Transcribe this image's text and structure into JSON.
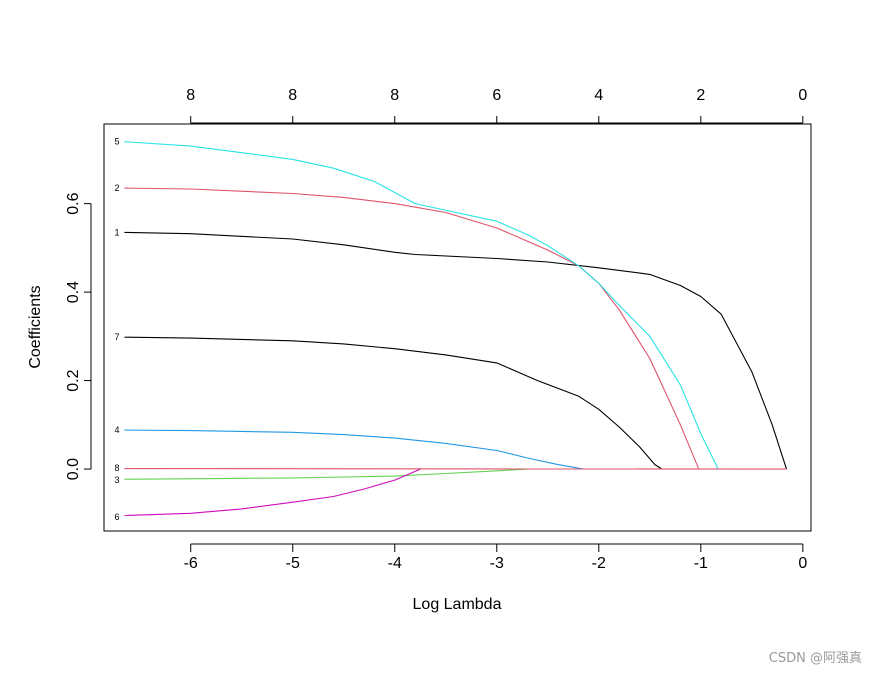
{
  "chart_data": {
    "type": "line",
    "xlabel": "Log Lambda",
    "ylabel": "Coefficients",
    "xlim": [
      -6.85,
      0.08
    ],
    "ylim": [
      -0.14,
      0.78
    ],
    "x_ticks": [
      -6,
      -5,
      -4,
      -3,
      -2,
      -1,
      0
    ],
    "y_ticks": [
      0.0,
      0.2,
      0.4,
      0.6
    ],
    "y_tick_labels": [
      "0.0",
      "0.2",
      "0.4",
      "0.6"
    ],
    "top_axis_ticks": [
      {
        "x": -6,
        "label": "8"
      },
      {
        "x": -5,
        "label": "8"
      },
      {
        "x": -4,
        "label": "8"
      },
      {
        "x": -3,
        "label": "6"
      },
      {
        "x": -2,
        "label": "4"
      },
      {
        "x": -1,
        "label": "2"
      },
      {
        "x": 0,
        "label": "0"
      }
    ],
    "grid": false,
    "series": [
      {
        "name": "1",
        "color": "#000000",
        "x": [
          -6.65,
          -6,
          -5,
          -4.5,
          -4,
          -3.8,
          -3,
          -2.5,
          -2,
          -1.5,
          -1.2,
          -1,
          -0.8,
          -0.5,
          -0.3,
          -0.16
        ],
        "y": [
          0.535,
          0.532,
          0.52,
          0.507,
          0.49,
          0.485,
          0.476,
          0.468,
          0.455,
          0.44,
          0.415,
          0.39,
          0.35,
          0.22,
          0.1,
          0.0
        ]
      },
      {
        "name": "2",
        "color": "#DF536B",
        "x": [
          -6.65,
          -6,
          -5,
          -4.5,
          -4,
          -3.5,
          -3,
          -2.7,
          -2.5,
          -2.2,
          -2,
          -1.8,
          -1.5,
          -1.2,
          -1.02
        ],
        "y": [
          0.635,
          0.633,
          0.623,
          0.614,
          0.6,
          0.58,
          0.545,
          0.515,
          0.495,
          0.46,
          0.42,
          0.36,
          0.25,
          0.1,
          0.0
        ]
      },
      {
        "name": "3",
        "color": "#61D04F",
        "x": [
          -6.65,
          -6,
          -5,
          -4.5,
          -4,
          -3.5,
          -3,
          -2.7
        ],
        "y": [
          -0.023,
          -0.022,
          -0.02,
          -0.018,
          -0.016,
          -0.01,
          -0.004,
          0.0
        ]
      },
      {
        "name": "4",
        "color": "#2297E6",
        "x": [
          -6.65,
          -6,
          -5,
          -4.5,
          -4,
          -3.5,
          -3,
          -2.7,
          -2.4,
          -2.15
        ],
        "y": [
          0.088,
          0.087,
          0.083,
          0.078,
          0.07,
          0.058,
          0.042,
          0.025,
          0.01,
          0.0
        ]
      },
      {
        "name": "5",
        "color": "#28E2E5",
        "x": [
          -6.65,
          -6,
          -5,
          -4.6,
          -4.2,
          -3.8,
          -3,
          -2.7,
          -2.5,
          -2.2,
          -2,
          -1.8,
          -1.5,
          -1.2,
          -1,
          -0.83
        ],
        "y": [
          0.74,
          0.73,
          0.7,
          0.68,
          0.65,
          0.6,
          0.56,
          0.53,
          0.505,
          0.46,
          0.42,
          0.37,
          0.3,
          0.19,
          0.08,
          0.0
        ]
      },
      {
        "name": "6",
        "color": "#CD0BBC",
        "x": [
          -6.65,
          -6,
          -5.5,
          -5,
          -4.6,
          -4.3,
          -4,
          -3.75
        ],
        "y": [
          -0.105,
          -0.1,
          -0.09,
          -0.075,
          -0.062,
          -0.045,
          -0.025,
          0.0
        ]
      },
      {
        "name": "7",
        "color": "#000000",
        "x": [
          -6.65,
          -6,
          -5,
          -4.5,
          -4,
          -3.5,
          -3,
          -2.8,
          -2.6,
          -2.2,
          -2,
          -1.8,
          -1.6,
          -1.45,
          -1.38
        ],
        "y": [
          0.298,
          0.296,
          0.29,
          0.283,
          0.272,
          0.258,
          0.24,
          0.22,
          0.2,
          0.165,
          0.135,
          0.095,
          0.05,
          0.01,
          0.0
        ]
      },
      {
        "name": "8",
        "color": "#DF536B",
        "x": [
          -6.65,
          -0.16
        ],
        "y": [
          0.001,
          0.0
        ]
      }
    ],
    "end_labels": [
      {
        "text": "5",
        "y": 0.74
      },
      {
        "text": "2",
        "y": 0.635
      },
      {
        "text": "1",
        "y": 0.535
      },
      {
        "text": "7",
        "y": 0.298
      },
      {
        "text": "4",
        "y": 0.088
      },
      {
        "text": "8",
        "y": 0.002
      },
      {
        "text": "3",
        "y": -0.025
      },
      {
        "text": "6",
        "y": -0.108
      }
    ]
  },
  "watermark": "CSDN @阿强真"
}
